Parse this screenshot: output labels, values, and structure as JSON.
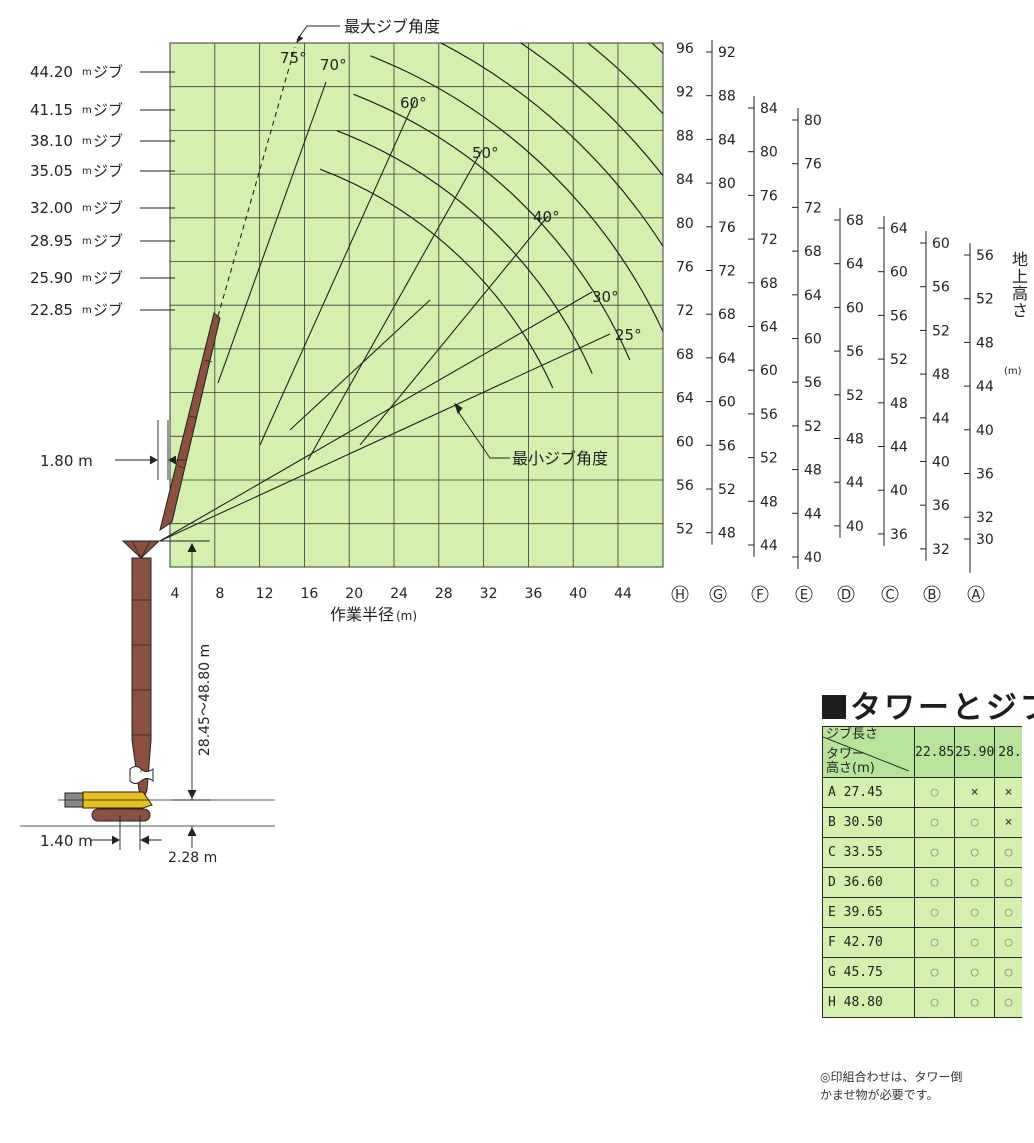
{
  "top_label": "最大ジブ角度",
  "min_angle_label": "最小ジブ角度",
  "xaxis_title": "作業半径",
  "xaxis_unit": "(m)",
  "x_ticks": [
    "4",
    "8",
    "12",
    "16",
    "20",
    "24",
    "28",
    "32",
    "36",
    "40",
    "44"
  ],
  "jib_labels": [
    {
      "value": "44.20",
      "unit": "m",
      "name": "ジブ"
    },
    {
      "value": "41.15",
      "unit": "m",
      "name": "ジブ"
    },
    {
      "value": "38.10",
      "unit": "m",
      "name": "ジブ"
    },
    {
      "value": "35.05",
      "unit": "m",
      "name": "ジブ"
    },
    {
      "value": "32.00",
      "unit": "m",
      "name": "ジブ"
    },
    {
      "value": "28.95",
      "unit": "m",
      "name": "ジブ"
    },
    {
      "value": "25.90",
      "unit": "m",
      "name": "ジブ"
    },
    {
      "value": "22.85",
      "unit": "m",
      "name": "ジブ"
    }
  ],
  "angle_labels": [
    "75°",
    "70°",
    "60°",
    "50°",
    "40°",
    "30°",
    "25°"
  ],
  "height_scales": [
    {
      "id": "H",
      "ticks": [
        "96",
        "92",
        "88",
        "84",
        "80",
        "76",
        "72",
        "68",
        "64",
        "60",
        "56",
        "52"
      ]
    },
    {
      "id": "G",
      "ticks": [
        "92",
        "88",
        "84",
        "80",
        "76",
        "72",
        "68",
        "64",
        "60",
        "56",
        "52",
        "48"
      ]
    },
    {
      "id": "F",
      "ticks": [
        "84",
        "80",
        "76",
        "72",
        "68",
        "64",
        "60",
        "56",
        "52",
        "48",
        "44"
      ]
    },
    {
      "id": "E",
      "ticks": [
        "80",
        "76",
        "72",
        "68",
        "64",
        "60",
        "56",
        "52",
        "48",
        "44",
        "40"
      ]
    },
    {
      "id": "D",
      "ticks": [
        "68",
        "64",
        "60",
        "56",
        "52",
        "48",
        "44",
        "40"
      ]
    },
    {
      "id": "C",
      "ticks": [
        "64",
        "60",
        "56",
        "52",
        "48",
        "44",
        "40",
        "36"
      ]
    },
    {
      "id": "B",
      "ticks": [
        "60",
        "56",
        "52",
        "48",
        "44",
        "40",
        "36",
        "32"
      ]
    },
    {
      "id": "A",
      "ticks": [
        "56",
        "52",
        "48",
        "44",
        "40",
        "36",
        "32",
        "30"
      ]
    }
  ],
  "height_axis_label": "地上高さ",
  "height_axis_unit": "(m)",
  "dimensions": {
    "offset": "1.80",
    "tower_range": "28.45～48.80",
    "base_left": "1.40",
    "base_right": "2.28",
    "unit": "m"
  },
  "table": {
    "title": "タワーとジブ",
    "corner_top": "ジブ長さ",
    "corner_bottom_1": "タワー",
    "corner_bottom_2": "高さ(m)",
    "columns": [
      "22.85",
      "25.90",
      "28."
    ],
    "rows": [
      {
        "label": "A 27.45",
        "cells": [
          "○",
          "×",
          "×"
        ]
      },
      {
        "label": "B 30.50",
        "cells": [
          "○",
          "○",
          "×"
        ]
      },
      {
        "label": "C 33.55",
        "cells": [
          "○",
          "○",
          "○"
        ]
      },
      {
        "label": "D 36.60",
        "cells": [
          "○",
          "○",
          "○"
        ]
      },
      {
        "label": "E 39.65",
        "cells": [
          "○",
          "○",
          "○"
        ]
      },
      {
        "label": "F 42.70",
        "cells": [
          "○",
          "○",
          "○"
        ]
      },
      {
        "label": "G 45.75",
        "cells": [
          "○",
          "○",
          "○"
        ]
      },
      {
        "label": "H 48.80",
        "cells": [
          "○",
          "○",
          "○"
        ]
      }
    ],
    "note_1": "◎印組合わせは、タワー倒",
    "note_2": "かませ物が必要です。"
  },
  "colors": {
    "chart_bg": "#d3f0ae",
    "grid": "#3a3a3a",
    "tower": "#8a5040",
    "base_yellow": "#e8c020"
  }
}
